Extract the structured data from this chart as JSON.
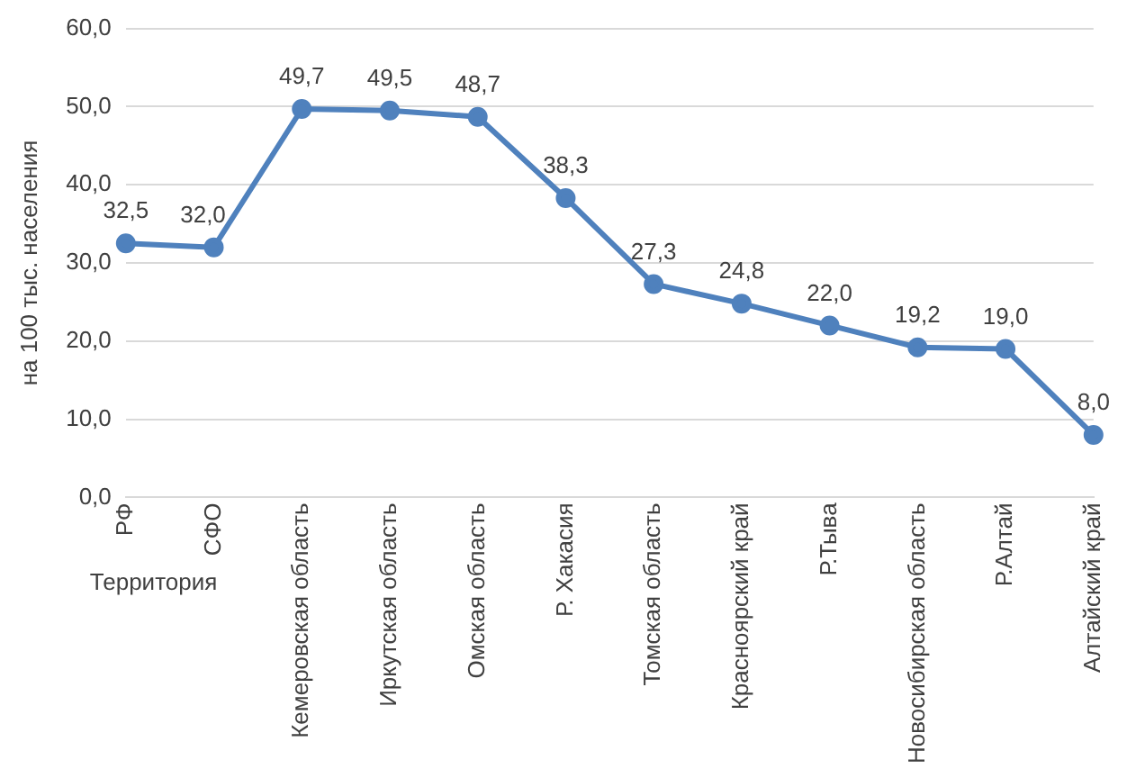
{
  "chart_data": {
    "type": "line",
    "xlabel": "Территория",
    "ylabel": "на 100 тыс. населения",
    "categories": [
      "РФ",
      "СФО",
      "Кемеровская область",
      "Иркутская область",
      "Омская область",
      "Р. Хакасия",
      "Томская область",
      "Красноярский край",
      "Р.Тыва",
      "Новосибирская область",
      "Р.Алтай",
      "Алтайский край"
    ],
    "values": [
      32.5,
      32.0,
      49.7,
      49.5,
      48.7,
      38.3,
      27.3,
      24.8,
      22.0,
      19.2,
      19.0,
      8.0
    ],
    "value_labels": [
      "32,5",
      "32,0",
      "49,7",
      "49,5",
      "48,7",
      "38,3",
      "27,3",
      "24,8",
      "22,0",
      "19,2",
      "19,0",
      "8,0"
    ],
    "color": "#4f81bd",
    "marker": "circle",
    "line_style": "solid",
    "grid": "y",
    "legend": false,
    "ylim": [
      0,
      60
    ],
    "yticks": [
      {
        "value": 0,
        "label": "0,0"
      },
      {
        "value": 10,
        "label": "10,0"
      },
      {
        "value": 20,
        "label": "20,0"
      },
      {
        "value": 30,
        "label": "30,0"
      },
      {
        "value": 40,
        "label": "40,0"
      },
      {
        "value": 50,
        "label": "50,0"
      },
      {
        "value": 60,
        "label": "60,0"
      }
    ]
  }
}
